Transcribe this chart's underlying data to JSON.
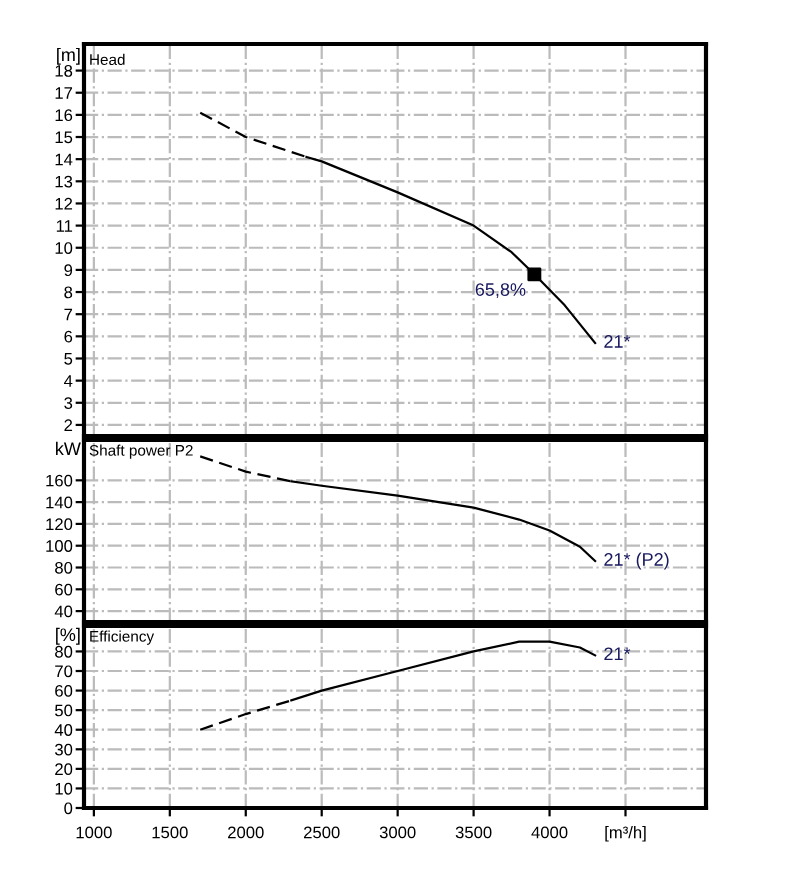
{
  "chart_data": [
    {
      "type": "line",
      "title": "Head",
      "ylabel": "[m]",
      "xlim": [
        935,
        5030
      ],
      "ylim": [
        1.5,
        19.2
      ],
      "tick_labels": "y",
      "grid": true,
      "legend": false,
      "xticks": [
        1000,
        1500,
        2000,
        2500,
        3000,
        3500,
        4000,
        4500
      ],
      "yticks": [
        2,
        3,
        4,
        5,
        6,
        7,
        8,
        9,
        10,
        11,
        12,
        13,
        14,
        15,
        16,
        17,
        18
      ],
      "series": [
        {
          "color": "#000000",
          "line_style": "dashed",
          "x": [
            1700,
            2000,
            2400
          ],
          "values": [
            16.1,
            15.0,
            14.1
          ]
        },
        {
          "name": "21*",
          "color": "#000000",
          "line_style": "solid",
          "x": [
            2400,
            2500,
            3000,
            3500,
            3750,
            3900,
            4100,
            4300
          ],
          "values": [
            14.1,
            13.9,
            12.5,
            11.0,
            9.8,
            8.8,
            7.4,
            5.7
          ]
        },
        {
          "type": "scatter",
          "marker": "square",
          "color": "#000000",
          "x": [
            3900
          ],
          "values": [
            8.8
          ]
        }
      ],
      "annotations": [
        {
          "text": "65,8%",
          "x": 3900,
          "y": 8.8
        }
      ]
    },
    {
      "type": "line",
      "title": "Shaft power P2",
      "ylabel": "kW",
      "xlim": [
        935,
        5030
      ],
      "ylim": [
        30,
        197
      ],
      "tick_labels": "y",
      "grid": true,
      "legend": false,
      "xticks": [
        1000,
        1500,
        2000,
        2500,
        3000,
        3500,
        4000,
        4500
      ],
      "yticks": [
        40,
        60,
        80,
        100,
        120,
        140,
        160
      ],
      "series": [
        {
          "color": "#000000",
          "line_style": "dashed",
          "x": [
            1700,
            2000,
            2300
          ],
          "values": [
            182,
            168,
            159
          ]
        },
        {
          "name": "21* (P2)",
          "color": "#000000",
          "line_style": "solid",
          "x": [
            2300,
            2500,
            3000,
            3500,
            3800,
            4000,
            4200,
            4300
          ],
          "values": [
            159,
            155,
            146,
            135,
            124,
            114,
            99,
            86
          ]
        }
      ]
    },
    {
      "type": "line",
      "title": "Efficiency",
      "ylabel": "[%]",
      "xlim": [
        935,
        5030
      ],
      "ylim": [
        0,
        93
      ],
      "grid": true,
      "legend": false,
      "xticks": [
        1000,
        1500,
        2000,
        2500,
        3000,
        3500,
        4000,
        {
          "value": 4500,
          "label": "[m³/h]"
        }
      ],
      "yticks": [
        0,
        10,
        20,
        30,
        40,
        50,
        60,
        70,
        80
      ],
      "series": [
        {
          "color": "#000000",
          "line_style": "dashed",
          "x": [
            1700,
            2000,
            2300
          ],
          "values": [
            40,
            48,
            55
          ]
        },
        {
          "name": "21*",
          "color": "#000000",
          "line_style": "solid",
          "x": [
            2300,
            2500,
            3000,
            3500,
            3800,
            4000,
            4200,
            4300
          ],
          "values": [
            55,
            60,
            70,
            80,
            85,
            85,
            82,
            78
          ]
        }
      ]
    }
  ]
}
